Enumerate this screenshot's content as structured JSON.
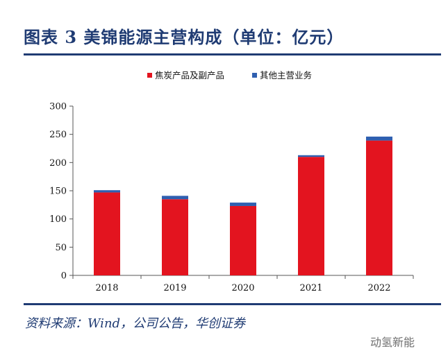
{
  "title": "图表 3 美锦能源主营构成（单位：亿元）",
  "source": "资料来源：Wind，公司公告，华创证券",
  "watermark": "动氢新能",
  "chart_data": {
    "type": "bar",
    "stacked": true,
    "categories": [
      "2018",
      "2019",
      "2020",
      "2021",
      "2022"
    ],
    "series": [
      {
        "name": "焦炭产品及副产品",
        "color": "#e3141f",
        "values": [
          147,
          135,
          123,
          210,
          239
        ]
      },
      {
        "name": "其他主营业务",
        "color": "#2f5fb0",
        "values": [
          4,
          6,
          6,
          3,
          7
        ]
      }
    ],
    "ylim": [
      0,
      300
    ],
    "yticks": [
      0,
      50,
      100,
      150,
      200,
      250,
      300
    ],
    "grid": false,
    "legend": "top-right"
  }
}
